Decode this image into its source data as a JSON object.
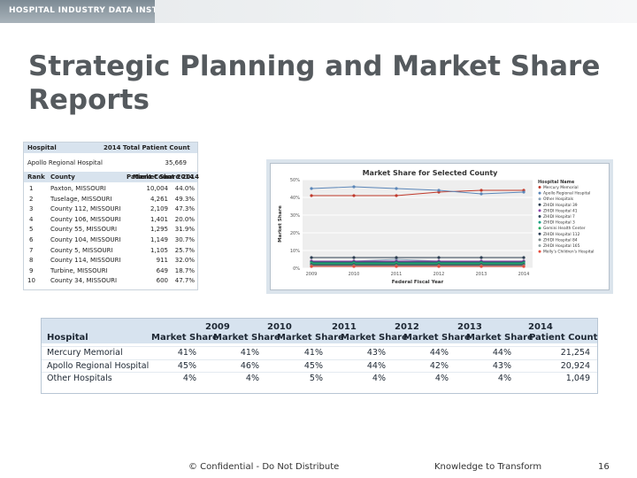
{
  "header": {
    "brand": "HOSPITAL INDUSTRY DATA INSTITUTE"
  },
  "title": "Strategic Planning and Market Share Reports",
  "left_table": {
    "header_left": "Hospital",
    "header_right": "2014 Total Patient Count",
    "hospital": "Apollo Regional Hospital",
    "hospital_count": "35,669",
    "columns": [
      "Rank",
      "County",
      "Patient Count 2014",
      "Market Share 2014"
    ],
    "rows": [
      [
        "1",
        "Paxton, MISSOURI",
        "10,004",
        "44.0%"
      ],
      [
        "2",
        "Tuselage, MISSOURI",
        "4,261",
        "49.3%"
      ],
      [
        "3",
        "County 112, MISSOURI",
        "2,109",
        "47.3%"
      ],
      [
        "4",
        "County 106, MISSOURI",
        "1,401",
        "20.0%"
      ],
      [
        "5",
        "County 55, MISSOURI",
        "1,295",
        "31.9%"
      ],
      [
        "6",
        "County 104, MISSOURI",
        "1,149",
        "30.7%"
      ],
      [
        "7",
        "County 5, MISSOURI",
        "1,105",
        "25.7%"
      ],
      [
        "8",
        "County 114, MISSOURI",
        "911",
        "32.0%"
      ],
      [
        "9",
        "Turbine, MISSOURI",
        "649",
        "18.7%"
      ],
      [
        "10",
        "County 34, MISSOURI",
        "600",
        "47.7%"
      ]
    ]
  },
  "chart_data": {
    "type": "line",
    "title": "Market Share for Selected County",
    "xlabel": "Federal Fiscal Year",
    "ylabel": "Market Share",
    "x": [
      "2009",
      "2010",
      "2011",
      "2012",
      "2013",
      "2014"
    ],
    "ylim": [
      0,
      50
    ],
    "yticks": [
      "0%",
      "10%",
      "20%",
      "30%",
      "40%",
      "50%"
    ],
    "legend_title": "Hospital Name",
    "legend_position": "right",
    "series": [
      {
        "name": "Mercury Memorial",
        "color": "#c0392b",
        "values": [
          41,
          41,
          41,
          43,
          44,
          44
        ]
      },
      {
        "name": "Apollo Regional Hospital",
        "color": "#5b86b8",
        "values": [
          45,
          46,
          45,
          44,
          42,
          43
        ]
      },
      {
        "name": "Other Hospitals",
        "color": "#8aa2b8",
        "values": [
          4,
          4,
          5,
          4,
          4,
          4
        ]
      },
      {
        "name": "ZHIDI Hospital 39",
        "color": "#2c3e50",
        "values": [
          6,
          6,
          6,
          6,
          6,
          6
        ]
      },
      {
        "name": "ZHIDI Hospital 41",
        "color": "#8e44ad",
        "values": [
          4,
          4,
          4,
          4,
          4,
          4
        ]
      },
      {
        "name": "ZHIDI Hospital 7",
        "color": "#34495e",
        "values": [
          3.5,
          3.5,
          3.5,
          3.5,
          3.5,
          3.5
        ]
      },
      {
        "name": "ZHIDI Hospital 3",
        "color": "#16a085",
        "values": [
          3,
          3,
          3,
          3,
          3,
          3
        ]
      },
      {
        "name": "Gemini Health Center",
        "color": "#27ae60",
        "values": [
          2.5,
          2.5,
          2.5,
          2.5,
          2.5,
          2.5
        ]
      },
      {
        "name": "ZHIDI Hospital 112",
        "color": "#2e4057",
        "values": [
          2,
          2,
          2,
          2,
          2,
          2
        ]
      },
      {
        "name": "ZHIDI Hospital 84",
        "color": "#7f8c8d",
        "values": [
          1.5,
          1.5,
          1.5,
          1.5,
          1.5,
          1.5
        ]
      },
      {
        "name": "ZHIDI Hospital 165",
        "color": "#95a5a6",
        "values": [
          1,
          1,
          1,
          1,
          1,
          1
        ]
      },
      {
        "name": "Molly's Children's Hospital",
        "color": "#e74c3c",
        "values": [
          1,
          1,
          1,
          1,
          1,
          1
        ]
      }
    ]
  },
  "bottom_table": {
    "hospital_header": "Hospital",
    "years": [
      "2009",
      "2010",
      "2011",
      "2012",
      "2013",
      "2014"
    ],
    "sub_headers": [
      "Market Share",
      "Market Share",
      "Market Share",
      "Market Share",
      "Market Share",
      "Market Share",
      "Patient Count"
    ],
    "rows": [
      {
        "name": "Mercury Memorial",
        "cells": [
          "41%",
          "41%",
          "41%",
          "43%",
          "44%",
          "44%",
          "21,254"
        ]
      },
      {
        "name": "Apollo Regional Hospital",
        "cells": [
          "45%",
          "46%",
          "45%",
          "44%",
          "42%",
          "43%",
          "20,924"
        ]
      },
      {
        "name": "Other Hospitals",
        "cells": [
          "4%",
          "4%",
          "5%",
          "4%",
          "4%",
          "4%",
          "1,049"
        ]
      }
    ]
  },
  "footer": {
    "confidential": "© Confidential - Do Not Distribute",
    "tagline": "Knowledge to Transform",
    "page_number": "16"
  }
}
